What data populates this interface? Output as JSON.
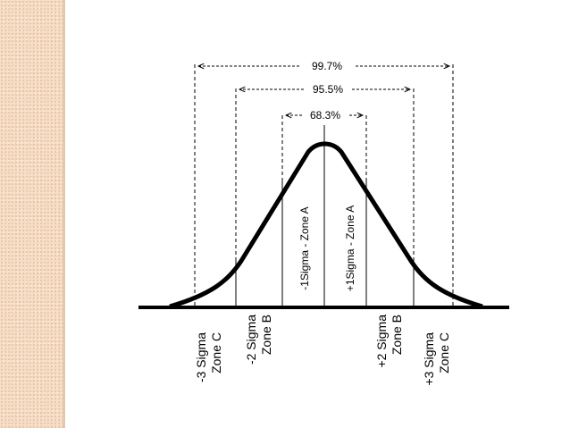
{
  "diagram": {
    "intervals": [
      {
        "label": "68.3%"
      },
      {
        "label": "95.5%"
      },
      {
        "label": "99.7%"
      }
    ],
    "zones_inside": [
      {
        "label": "-1Sigma - Zone A"
      },
      {
        "label": "+1Sigma - Zone A"
      }
    ],
    "zones_below": [
      {
        "line1": "-3 Sigma",
        "line2": "Zone C"
      },
      {
        "line1": "-2 Sigma",
        "line2": "Zone B"
      },
      {
        "line1": "+2 Sigma",
        "line2": "Zone B"
      },
      {
        "line1": "+3 Sigma",
        "line2": "Zone C"
      }
    ]
  }
}
